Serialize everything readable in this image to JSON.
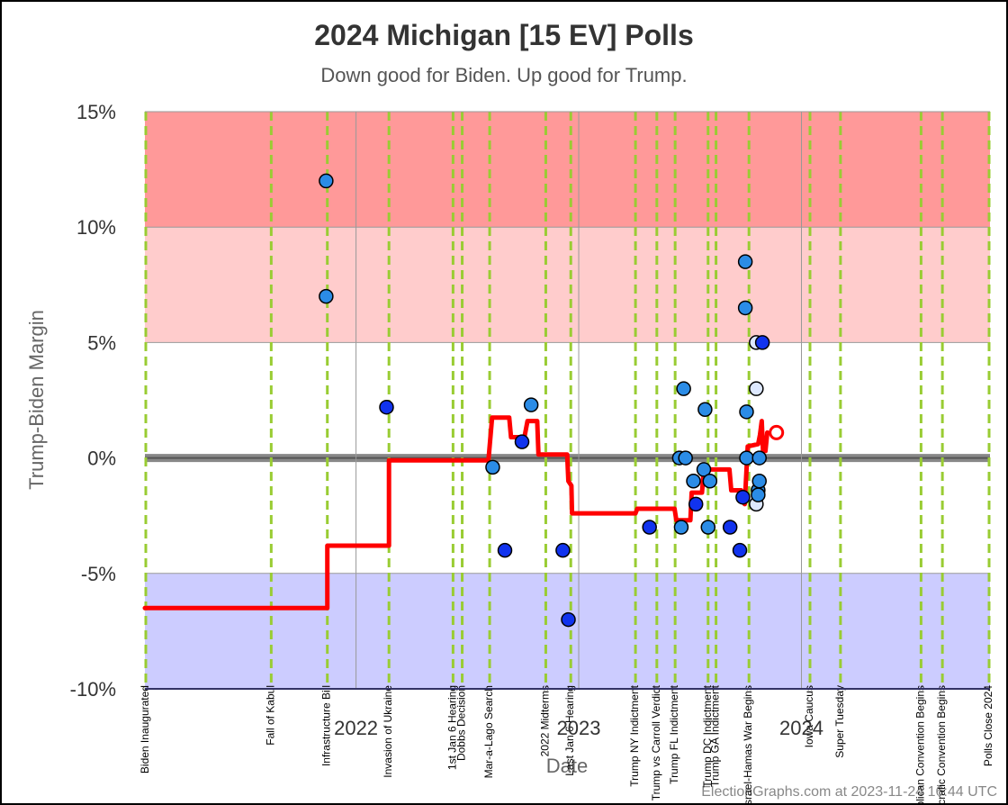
{
  "chart_data": {
    "type": "scatter",
    "title": "2024 Michigan [15 EV] Polls",
    "subtitle": "Down good for Biden. Up good for Trump.",
    "xlabel": "Date",
    "ylabel": "Trump-Biden Margin",
    "credit": "ElectionGraphs.com at 2023-11-24 16:44 UTC",
    "xlim": [
      "2021-01-20",
      "2024-11-05"
    ],
    "ylim": [
      -10,
      15
    ],
    "x_ticks": [
      {
        "date": "2022-01-01",
        "label": "2022"
      },
      {
        "date": "2023-01-01",
        "label": "2023"
      },
      {
        "date": "2024-01-01",
        "label": "2024"
      }
    ],
    "y_ticks": [
      {
        "value": 15,
        "label": "15%"
      },
      {
        "value": 10,
        "label": "10%"
      },
      {
        "value": 5,
        "label": "5%"
      },
      {
        "value": 0,
        "label": "0%"
      },
      {
        "value": -5,
        "label": "-5%"
      },
      {
        "value": -10,
        "label": "-10%"
      }
    ],
    "bands": [
      {
        "from": 10,
        "to": 15,
        "color": "#ff9999"
      },
      {
        "from": 5,
        "to": 10,
        "color": "#ffcccc"
      },
      {
        "from": -10,
        "to": -5,
        "color": "#ccccff"
      }
    ],
    "events": [
      {
        "date": "2021-01-20",
        "label": "Biden Inaugurated"
      },
      {
        "date": "2021-08-15",
        "label": "Fall of Kabul"
      },
      {
        "date": "2021-11-15",
        "label": "Infrastructure Bill"
      },
      {
        "date": "2022-02-24",
        "label": "Invasion of Ukraine"
      },
      {
        "date": "2022-06-09",
        "label": "1st Jan 6 Hearing"
      },
      {
        "date": "2022-06-24",
        "label": "Dobbs Decision"
      },
      {
        "date": "2022-08-08",
        "label": "Mar-a-Lago Search"
      },
      {
        "date": "2022-11-08",
        "label": "2022 Midterms"
      },
      {
        "date": "2022-12-19",
        "label": "Last Jan 6 Hearing"
      },
      {
        "date": "2023-04-04",
        "label": "Trump NY Indictment"
      },
      {
        "date": "2023-05-09",
        "label": "Trump vs Carroll Verdict"
      },
      {
        "date": "2023-06-08",
        "label": "Trump FL Indictment"
      },
      {
        "date": "2023-08-01",
        "label": "Trump DC Indictment"
      },
      {
        "date": "2023-08-14",
        "label": "Trump GA Indictment"
      },
      {
        "date": "2023-10-07",
        "label": "Israel-Hamas War Begins"
      },
      {
        "date": "2024-01-15",
        "label": "Iowa Caucus"
      },
      {
        "date": "2024-03-05",
        "label": "Super Tuesday"
      },
      {
        "date": "2024-07-15",
        "label": "Republican Convention Begins"
      },
      {
        "date": "2024-08-19",
        "label": "Democratic Convention Begins"
      },
      {
        "date": "2024-11-05",
        "label": "Polls Close 2024"
      }
    ],
    "average_line": [
      [
        "2021-01-20",
        -6.5
      ],
      [
        "2021-11-15",
        -6.5
      ],
      [
        "2021-11-15",
        -3.8
      ],
      [
        "2022-02-24",
        -3.8
      ],
      [
        "2022-02-24",
        -0.1
      ],
      [
        "2022-08-06",
        -0.1
      ],
      [
        "2022-08-12",
        1.75
      ],
      [
        "2022-09-09",
        1.75
      ],
      [
        "2022-09-12",
        0.9
      ],
      [
        "2022-10-04",
        0.9
      ],
      [
        "2022-10-09",
        1.6
      ],
      [
        "2022-10-25",
        1.6
      ],
      [
        "2022-10-27",
        0.15
      ],
      [
        "2022-12-13",
        0.15
      ],
      [
        "2022-12-15",
        -1.0
      ],
      [
        "2022-12-20",
        -1.2
      ],
      [
        "2022-12-21",
        -2.4
      ],
      [
        "2023-04-04",
        -2.4
      ],
      [
        "2023-04-07",
        -2.2
      ],
      [
        "2023-06-07",
        -2.2
      ],
      [
        "2023-06-10",
        -2.7
      ],
      [
        "2023-07-03",
        -2.7
      ],
      [
        "2023-07-05",
        -1.5
      ],
      [
        "2023-07-22",
        -1.5
      ],
      [
        "2023-07-25",
        -0.5
      ],
      [
        "2023-09-05",
        -0.5
      ],
      [
        "2023-09-08",
        -1.4
      ],
      [
        "2023-09-24",
        -1.4
      ],
      [
        "2023-09-27",
        -1.9
      ],
      [
        "2023-09-30",
        -2.0
      ],
      [
        "2023-10-02",
        -1.0
      ],
      [
        "2023-10-05",
        0.5
      ],
      [
        "2023-10-22",
        0.6
      ],
      [
        "2023-10-25",
        1.0
      ],
      [
        "2023-10-28",
        1.6
      ],
      [
        "2023-10-30",
        0.3
      ],
      [
        "2023-11-03",
        0.3
      ],
      [
        "2023-11-06",
        1.1
      ]
    ],
    "current_marker": {
      "x": "2023-11-21",
      "y": 1.1
    },
    "polls": [
      {
        "x": "2021-11-13",
        "y": 12,
        "color": "#2b8ce6"
      },
      {
        "x": "2021-11-13",
        "y": 7,
        "color": "#2b8ce6"
      },
      {
        "x": "2022-02-20",
        "y": 2.2,
        "color": "#1133ee"
      },
      {
        "x": "2022-08-13",
        "y": -0.4,
        "color": "#2b8ce6"
      },
      {
        "x": "2022-09-02",
        "y": -4,
        "color": "#1133ee"
      },
      {
        "x": "2022-09-30",
        "y": 0.7,
        "color": "#1133ee"
      },
      {
        "x": "2022-10-15",
        "y": 2.3,
        "color": "#2b8ce6"
      },
      {
        "x": "2022-12-06",
        "y": -4,
        "color": "#1133ee"
      },
      {
        "x": "2022-12-15",
        "y": -7,
        "color": "#1133ee"
      },
      {
        "x": "2023-04-27",
        "y": -3,
        "color": "#1133ee"
      },
      {
        "x": "2023-06-15",
        "y": 0,
        "color": "#2b8ce6"
      },
      {
        "x": "2023-06-18",
        "y": -3,
        "color": "#2b8ce6"
      },
      {
        "x": "2023-06-22",
        "y": 3,
        "color": "#2b8ce6"
      },
      {
        "x": "2023-06-25",
        "y": 0,
        "color": "#2b8ce6"
      },
      {
        "x": "2023-07-08",
        "y": -1,
        "color": "#2b8ce6"
      },
      {
        "x": "2023-07-12",
        "y": -2,
        "color": "#1133ee"
      },
      {
        "x": "2023-07-25",
        "y": -0.5,
        "color": "#2b8ce6"
      },
      {
        "x": "2023-07-27",
        "y": 2.1,
        "color": "#2b8ce6"
      },
      {
        "x": "2023-08-01",
        "y": -3,
        "color": "#2b8ce6"
      },
      {
        "x": "2023-08-04",
        "y": -1,
        "color": "#2b8ce6"
      },
      {
        "x": "2023-09-06",
        "y": -3,
        "color": "#1133ee"
      },
      {
        "x": "2023-09-22",
        "y": -4,
        "color": "#1133ee"
      },
      {
        "x": "2023-09-27",
        "y": -1.7,
        "color": "#1133ee"
      },
      {
        "x": "2023-10-01",
        "y": 8.5,
        "color": "#2b8ce6"
      },
      {
        "x": "2023-10-01",
        "y": 6.5,
        "color": "#2b8ce6"
      },
      {
        "x": "2023-10-03",
        "y": 2,
        "color": "#2b8ce6"
      },
      {
        "x": "2023-10-03",
        "y": 0,
        "color": "#2b8ce6"
      },
      {
        "x": "2023-10-19",
        "y": 5,
        "color": "#dde8ff"
      },
      {
        "x": "2023-10-19",
        "y": 3,
        "color": "#dde8ff"
      },
      {
        "x": "2023-10-19",
        "y": -2,
        "color": "#dde8ff"
      },
      {
        "x": "2023-10-22",
        "y": -1.4,
        "color": "#2b8ce6"
      },
      {
        "x": "2023-10-22",
        "y": -1.6,
        "color": "#2b8ce6"
      },
      {
        "x": "2023-10-24",
        "y": 0,
        "color": "#2b8ce6"
      },
      {
        "x": "2023-10-24",
        "y": -1,
        "color": "#2b8ce6"
      },
      {
        "x": "2023-10-29",
        "y": 5,
        "color": "#1133ee"
      }
    ],
    "colors": {
      "average_line": "#ff0000",
      "event_line": "#99cc33",
      "zero_line": "#888888",
      "year_line": "#999999"
    }
  }
}
